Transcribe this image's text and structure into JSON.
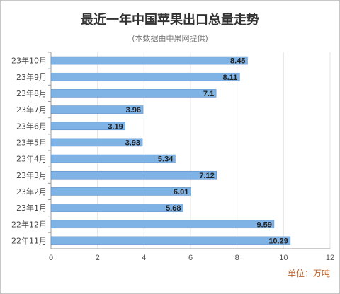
{
  "chart_data": {
    "type": "bar",
    "orientation": "horizontal",
    "title": "最近一年中国苹果出口总量走势",
    "subtitle": "(本数据由中果网提供)",
    "unit_label": "单位：万吨",
    "categories": [
      "23年10月",
      "23年9月",
      "23年8月",
      "23年7月",
      "23年6月",
      "23年5月",
      "23年4月",
      "23年3月",
      "23年2月",
      "23年1月",
      "22年12月",
      "22年11月"
    ],
    "values": [
      8.45,
      8.11,
      7.1,
      3.96,
      3.19,
      3.93,
      5.34,
      7.12,
      6.01,
      5.68,
      9.59,
      10.29
    ],
    "value_labels": [
      "8.45",
      "8.11",
      "7.1",
      "3.96",
      "3.19",
      "3.93",
      "5.34",
      "7.12",
      "6.01",
      "5.68",
      "9.59",
      "10.29"
    ],
    "xlim": [
      0,
      12
    ],
    "x_ticks": [
      "0",
      "2",
      "4",
      "6",
      "8",
      "10",
      "12"
    ],
    "grid": true,
    "bar_color": "#7fb2e5",
    "bar_border_color": "#5b91c9",
    "unit_color": "#c0622b"
  }
}
